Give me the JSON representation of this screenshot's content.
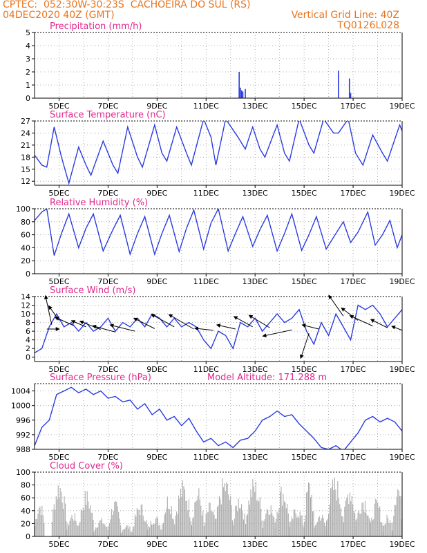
{
  "header": {
    "left_line1": "CPTEC:  052:30W-30:23S  CACHOEIRA DO SUL (RS)",
    "left_line2": "04DEC2020 40Z (GMT)",
    "right_line1": "Vertical Grid Line: 40Z",
    "right_line2": "TQ0126L028",
    "color": "#e8741e"
  },
  "colors": {
    "line": "#2a3be0",
    "title": "#e0288c",
    "bar_cloud": "#a8a8a8",
    "arrow": "#000000"
  },
  "model_altitude": "Model Altitude: 171.288 m",
  "x_axis": {
    "start": "04DEC2020 00Z",
    "end": "19DEC2020 00Z",
    "ticks": [
      {
        "day": 1,
        "label": "5DEC"
      },
      {
        "day": 3,
        "label": "7DEC"
      },
      {
        "day": 5,
        "label": "9DEC"
      },
      {
        "day": 7,
        "label": "11DEC"
      },
      {
        "day": 9,
        "label": "13DEC"
      },
      {
        "day": 11,
        "label": "15DEC"
      },
      {
        "day": 13,
        "label": "17DEC"
      },
      {
        "day": 15,
        "label": "19DEC"
      }
    ]
  },
  "chart_data": [
    {
      "id": "precip",
      "type": "bar",
      "title": "Precipitation (mm/h)",
      "ylim": [
        0,
        5
      ],
      "yticks": [
        0,
        1,
        2,
        3,
        4,
        5
      ],
      "series_style": "bar",
      "points": [
        [
          8.35,
          2.0
        ],
        [
          8.4,
          0.8
        ],
        [
          8.45,
          0.6
        ],
        [
          8.5,
          0.5
        ],
        [
          8.6,
          0.7
        ],
        [
          12.4,
          2.1
        ],
        [
          12.85,
          1.5
        ],
        [
          12.9,
          0.4
        ]
      ]
    },
    {
      "id": "temp",
      "type": "line",
      "title": "Surface Temperature (nC)",
      "ylim": [
        11,
        27
      ],
      "yticks": [
        12,
        15,
        18,
        21,
        24,
        27
      ],
      "points": [
        [
          0,
          18.5
        ],
        [
          0.3,
          16
        ],
        [
          0.5,
          15.5
        ],
        [
          0.8,
          25.5
        ],
        [
          1.1,
          18
        ],
        [
          1.4,
          11.5
        ],
        [
          1.8,
          20.5
        ],
        [
          2.1,
          16
        ],
        [
          2.3,
          13.5
        ],
        [
          2.8,
          22
        ],
        [
          3.2,
          16
        ],
        [
          3.4,
          14
        ],
        [
          3.8,
          25.5
        ],
        [
          4.2,
          18
        ],
        [
          4.4,
          15.5
        ],
        [
          4.9,
          26
        ],
        [
          5.2,
          19
        ],
        [
          5.4,
          17
        ],
        [
          5.8,
          25.5
        ],
        [
          6.2,
          19
        ],
        [
          6.4,
          16
        ],
        [
          6.9,
          27.5
        ],
        [
          7.2,
          23
        ],
        [
          7.4,
          16
        ],
        [
          7.8,
          27.5
        ],
        [
          8.3,
          23
        ],
        [
          8.6,
          20
        ],
        [
          8.9,
          25.5
        ],
        [
          9.2,
          20
        ],
        [
          9.4,
          18
        ],
        [
          9.9,
          26
        ],
        [
          10.2,
          19
        ],
        [
          10.4,
          17
        ],
        [
          10.8,
          27.5
        ],
        [
          11.2,
          21
        ],
        [
          11.4,
          19
        ],
        [
          11.8,
          27.5
        ],
        [
          12.2,
          24
        ],
        [
          12.4,
          24
        ],
        [
          12.8,
          27.5
        ],
        [
          13.1,
          19
        ],
        [
          13.4,
          16
        ],
        [
          13.8,
          23.5
        ],
        [
          14.2,
          19
        ],
        [
          14.4,
          17
        ],
        [
          14.9,
          26
        ],
        [
          15,
          24.5
        ]
      ]
    },
    {
      "id": "rh",
      "type": "line",
      "title": "Relative Humidity (%)",
      "ylim": [
        0,
        100
      ],
      "yticks": [
        0,
        20,
        40,
        60,
        80,
        100
      ],
      "points": [
        [
          0,
          82
        ],
        [
          0.3,
          95
        ],
        [
          0.5,
          100
        ],
        [
          0.8,
          28
        ],
        [
          1.1,
          62
        ],
        [
          1.4,
          92
        ],
        [
          1.8,
          40
        ],
        [
          2.1,
          70
        ],
        [
          2.4,
          92
        ],
        [
          2.8,
          35
        ],
        [
          3.2,
          68
        ],
        [
          3.5,
          90
        ],
        [
          3.9,
          30
        ],
        [
          4.2,
          62
        ],
        [
          4.5,
          88
        ],
        [
          4.9,
          30
        ],
        [
          5.2,
          62
        ],
        [
          5.5,
          90
        ],
        [
          5.9,
          34
        ],
        [
          6.2,
          70
        ],
        [
          6.5,
          98
        ],
        [
          6.9,
          38
        ],
        [
          7.2,
          78
        ],
        [
          7.5,
          100
        ],
        [
          7.9,
          35
        ],
        [
          8.2,
          62
        ],
        [
          8.5,
          88
        ],
        [
          8.9,
          42
        ],
        [
          9.2,
          68
        ],
        [
          9.5,
          90
        ],
        [
          9.9,
          35
        ],
        [
          10.2,
          62
        ],
        [
          10.5,
          92
        ],
        [
          10.9,
          36
        ],
        [
          11.2,
          60
        ],
        [
          11.5,
          88
        ],
        [
          11.9,
          38
        ],
        [
          12.3,
          62
        ],
        [
          12.6,
          80
        ],
        [
          12.9,
          48
        ],
        [
          13.2,
          64
        ],
        [
          13.6,
          95
        ],
        [
          13.9,
          44
        ],
        [
          14.2,
          60
        ],
        [
          14.5,
          82
        ],
        [
          14.8,
          40
        ],
        [
          15,
          60
        ]
      ]
    },
    {
      "id": "wind",
      "type": "line",
      "title": "Surface Wind (m/s)",
      "ylim": [
        -1,
        14
      ],
      "yticks": [
        0,
        2,
        4,
        6,
        8,
        10,
        12,
        14
      ],
      "points": [
        [
          0,
          1
        ],
        [
          0.3,
          2
        ],
        [
          0.6,
          7
        ],
        [
          0.9,
          10
        ],
        [
          1.2,
          7
        ],
        [
          1.5,
          8
        ],
        [
          1.8,
          6
        ],
        [
          2.1,
          8
        ],
        [
          2.4,
          6
        ],
        [
          2.7,
          7
        ],
        [
          3.0,
          9
        ],
        [
          3.3,
          6
        ],
        [
          3.6,
          8
        ],
        [
          3.9,
          7
        ],
        [
          4.2,
          9
        ],
        [
          4.5,
          7
        ],
        [
          4.8,
          10
        ],
        [
          5.1,
          9
        ],
        [
          5.4,
          7
        ],
        [
          5.7,
          9
        ],
        [
          6.0,
          7
        ],
        [
          6.3,
          8
        ],
        [
          6.6,
          7
        ],
        [
          6.9,
          4
        ],
        [
          7.2,
          2
        ],
        [
          7.5,
          6
        ],
        [
          7.8,
          5
        ],
        [
          8.1,
          2
        ],
        [
          8.4,
          8
        ],
        [
          8.7,
          7
        ],
        [
          9.0,
          9
        ],
        [
          9.3,
          6
        ],
        [
          9.6,
          8
        ],
        [
          9.9,
          10
        ],
        [
          10.2,
          8
        ],
        [
          10.5,
          9
        ],
        [
          10.8,
          11
        ],
        [
          11.1,
          6
        ],
        [
          11.4,
          3
        ],
        [
          11.7,
          8
        ],
        [
          12.0,
          5
        ],
        [
          12.3,
          10
        ],
        [
          12.6,
          7
        ],
        [
          12.9,
          4
        ],
        [
          13.2,
          12
        ],
        [
          13.5,
          11
        ],
        [
          13.8,
          12
        ],
        [
          14.1,
          10
        ],
        [
          14.4,
          7
        ],
        [
          14.7,
          9
        ],
        [
          15,
          11
        ]
      ],
      "arrows": [
        {
          "d": 0.5,
          "y": 6.5,
          "u": 0.6,
          "v": 0
        },
        {
          "d": 0.7,
          "y": 7.5,
          "u": -0.3,
          "v": 1.4
        },
        {
          "d": 1.0,
          "y": 8.5,
          "u": -0.5,
          "v": 0.7
        },
        {
          "d": 1.6,
          "y": 7.3,
          "u": -0.9,
          "v": 0.4
        },
        {
          "d": 2.1,
          "y": 7.0,
          "u": -0.7,
          "v": 0.3
        },
        {
          "d": 2.7,
          "y": 6.4,
          "u": -1.0,
          "v": 0.4
        },
        {
          "d": 3.3,
          "y": 5.8,
          "u": -1.1,
          "v": 0.3
        },
        {
          "d": 4.1,
          "y": 6.0,
          "u": -1.2,
          "v": 0.3
        },
        {
          "d": 4.9,
          "y": 6.6,
          "u": -1.0,
          "v": 0.5
        },
        {
          "d": 5.7,
          "y": 7.0,
          "u": -1.1,
          "v": 0.6
        },
        {
          "d": 6.5,
          "y": 6.5,
          "u": -1.2,
          "v": 0.7
        },
        {
          "d": 7.3,
          "y": 6.2,
          "u": -0.9,
          "v": 0.1
        },
        {
          "d": 8.2,
          "y": 6.5,
          "u": -0.9,
          "v": 0.2
        },
        {
          "d": 8.9,
          "y": 7.0,
          "u": -0.9,
          "v": 0.5
        },
        {
          "d": 9.6,
          "y": 6.8,
          "u": -1.0,
          "v": 0.6
        },
        {
          "d": 10.5,
          "y": 6.3,
          "u": -1.4,
          "v": -0.3
        },
        {
          "d": 11.2,
          "y": 5.5,
          "u": -0.4,
          "v": -1.2
        },
        {
          "d": 11.6,
          "y": 6.5,
          "u": -0.8,
          "v": 0.2
        },
        {
          "d": 12.6,
          "y": 9.5,
          "u": -0.7,
          "v": 1.0
        },
        {
          "d": 13.2,
          "y": 8.5,
          "u": -0.8,
          "v": 0.6
        },
        {
          "d": 13.8,
          "y": 7.2,
          "u": -1.1,
          "v": 0.5
        },
        {
          "d": 14.4,
          "y": 6.8,
          "u": -0.8,
          "v": 0.4
        },
        {
          "d": 15.0,
          "y": 6.2,
          "u": -0.5,
          "v": 0.2
        }
      ]
    },
    {
      "id": "pres",
      "type": "line",
      "title": "Surface Pressure (hPa)",
      "ylim": [
        988,
        1006
      ],
      "yticks": [
        988,
        992,
        996,
        1000,
        1004
      ],
      "points": [
        [
          0,
          989
        ],
        [
          0.3,
          994
        ],
        [
          0.6,
          996
        ],
        [
          0.9,
          1003
        ],
        [
          1.2,
          1004
        ],
        [
          1.5,
          1005
        ],
        [
          1.8,
          1003.5
        ],
        [
          2.1,
          1004.5
        ],
        [
          2.4,
          1003
        ],
        [
          2.7,
          1004
        ],
        [
          3.0,
          1002
        ],
        [
          3.3,
          1002.5
        ],
        [
          3.6,
          1001
        ],
        [
          3.9,
          1001.5
        ],
        [
          4.2,
          999
        ],
        [
          4.5,
          1000.5
        ],
        [
          4.8,
          997.5
        ],
        [
          5.1,
          999
        ],
        [
          5.4,
          996
        ],
        [
          5.7,
          997
        ],
        [
          6.0,
          994.5
        ],
        [
          6.3,
          996.5
        ],
        [
          6.6,
          993
        ],
        [
          6.9,
          990
        ],
        [
          7.2,
          991
        ],
        [
          7.5,
          989
        ],
        [
          7.8,
          990
        ],
        [
          8.1,
          988.5
        ],
        [
          8.4,
          990.5
        ],
        [
          8.7,
          991
        ],
        [
          9.0,
          993
        ],
        [
          9.3,
          996
        ],
        [
          9.6,
          997
        ],
        [
          9.9,
          998.5
        ],
        [
          10.2,
          997
        ],
        [
          10.5,
          997.5
        ],
        [
          10.8,
          995
        ],
        [
          11.1,
          993
        ],
        [
          11.4,
          991
        ],
        [
          11.7,
          988.5
        ],
        [
          12.0,
          988
        ],
        [
          12.3,
          989
        ],
        [
          12.6,
          987.5
        ],
        [
          12.9,
          990
        ],
        [
          13.2,
          992.5
        ],
        [
          13.5,
          996
        ],
        [
          13.8,
          997
        ],
        [
          14.1,
          995.5
        ],
        [
          14.4,
          996.5
        ],
        [
          14.7,
          995.5
        ],
        [
          15,
          993
        ]
      ]
    },
    {
      "id": "cloud",
      "type": "bar",
      "title": "Cloud Cover (%)",
      "ylim": [
        0,
        100
      ],
      "yticks": [
        0,
        20,
        40,
        60,
        80,
        100
      ],
      "series_style": "cloud",
      "blocks": [
        [
          0,
          0.4,
          60
        ],
        [
          0.7,
          1.3,
          95
        ],
        [
          1.3,
          1.8,
          40
        ],
        [
          1.8,
          2.4,
          75
        ],
        [
          2.4,
          3.0,
          30
        ],
        [
          3.0,
          3.5,
          60
        ],
        [
          3.5,
          4.0,
          20
        ],
        [
          4.0,
          4.6,
          55
        ],
        [
          4.6,
          5.2,
          35
        ],
        [
          5.2,
          5.7,
          70
        ],
        [
          5.7,
          6.4,
          90
        ],
        [
          6.4,
          6.9,
          80
        ],
        [
          6.9,
          7.4,
          55
        ],
        [
          7.4,
          8.1,
          98
        ],
        [
          8.1,
          8.6,
          70
        ],
        [
          8.6,
          9.3,
          95
        ],
        [
          9.3,
          9.8,
          60
        ],
        [
          9.8,
          10.4,
          85
        ],
        [
          10.4,
          11.0,
          50
        ],
        [
          11.0,
          11.4,
          95
        ],
        [
          11.4,
          11.9,
          40
        ],
        [
          11.9,
          12.6,
          98
        ],
        [
          12.6,
          13.1,
          90
        ],
        [
          13.1,
          13.7,
          70
        ],
        [
          13.7,
          14.2,
          60
        ],
        [
          14.2,
          14.6,
          35
        ],
        [
          14.6,
          15.0,
          95
        ]
      ]
    }
  ]
}
